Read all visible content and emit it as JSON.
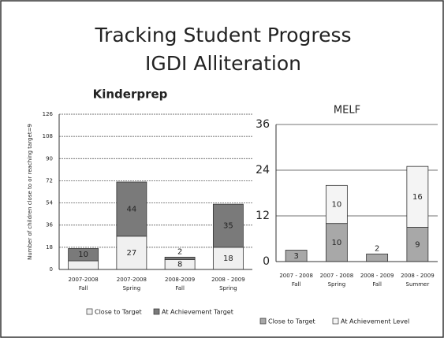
{
  "title": "Tracking Student Progress",
  "subtitle": "IGDI Alliteration",
  "chart_data": [
    {
      "type": "stacked_bar",
      "title": "Kinderprep",
      "y_label": "Number of children close to or reaching target=9",
      "categories": [
        [
          "2007-2008",
          "Fall"
        ],
        [
          "2007-2008",
          "Spring"
        ],
        [
          "2008-2009",
          "Fall"
        ],
        [
          "2008 - 2009",
          "Spring"
        ]
      ],
      "series": [
        {
          "name": "Close to Target",
          "color": "#f0f0f0",
          "values": [
            7,
            27,
            8,
            18
          ]
        },
        {
          "name": "At Achievement Target",
          "color": "#7a7a7a",
          "values": [
            10,
            44,
            2,
            35
          ]
        }
      ],
      "ylim": [
        0,
        126
      ],
      "yticks": [
        0,
        18,
        36,
        54,
        72,
        90,
        108,
        126
      ],
      "grid": true
    },
    {
      "type": "stacked_bar",
      "title": "MELF",
      "categories": [
        [
          "2007 - 2008",
          "Fall"
        ],
        [
          "2007 - 2008",
          "Spring"
        ],
        [
          "2008 - 2009",
          "Fall"
        ],
        [
          "2008 - 2009",
          "Summer"
        ]
      ],
      "series": [
        {
          "name": "Close to Target",
          "color": "#a8a8a8",
          "values": [
            3,
            10,
            2,
            9
          ]
        },
        {
          "name": "At Achievement Level",
          "color": "#f4f4f4",
          "values": [
            null,
            10,
            null,
            16
          ]
        }
      ],
      "ylim": [
        0,
        36
      ],
      "yticks": [
        0,
        12,
        24,
        36
      ],
      "grid": true
    }
  ]
}
